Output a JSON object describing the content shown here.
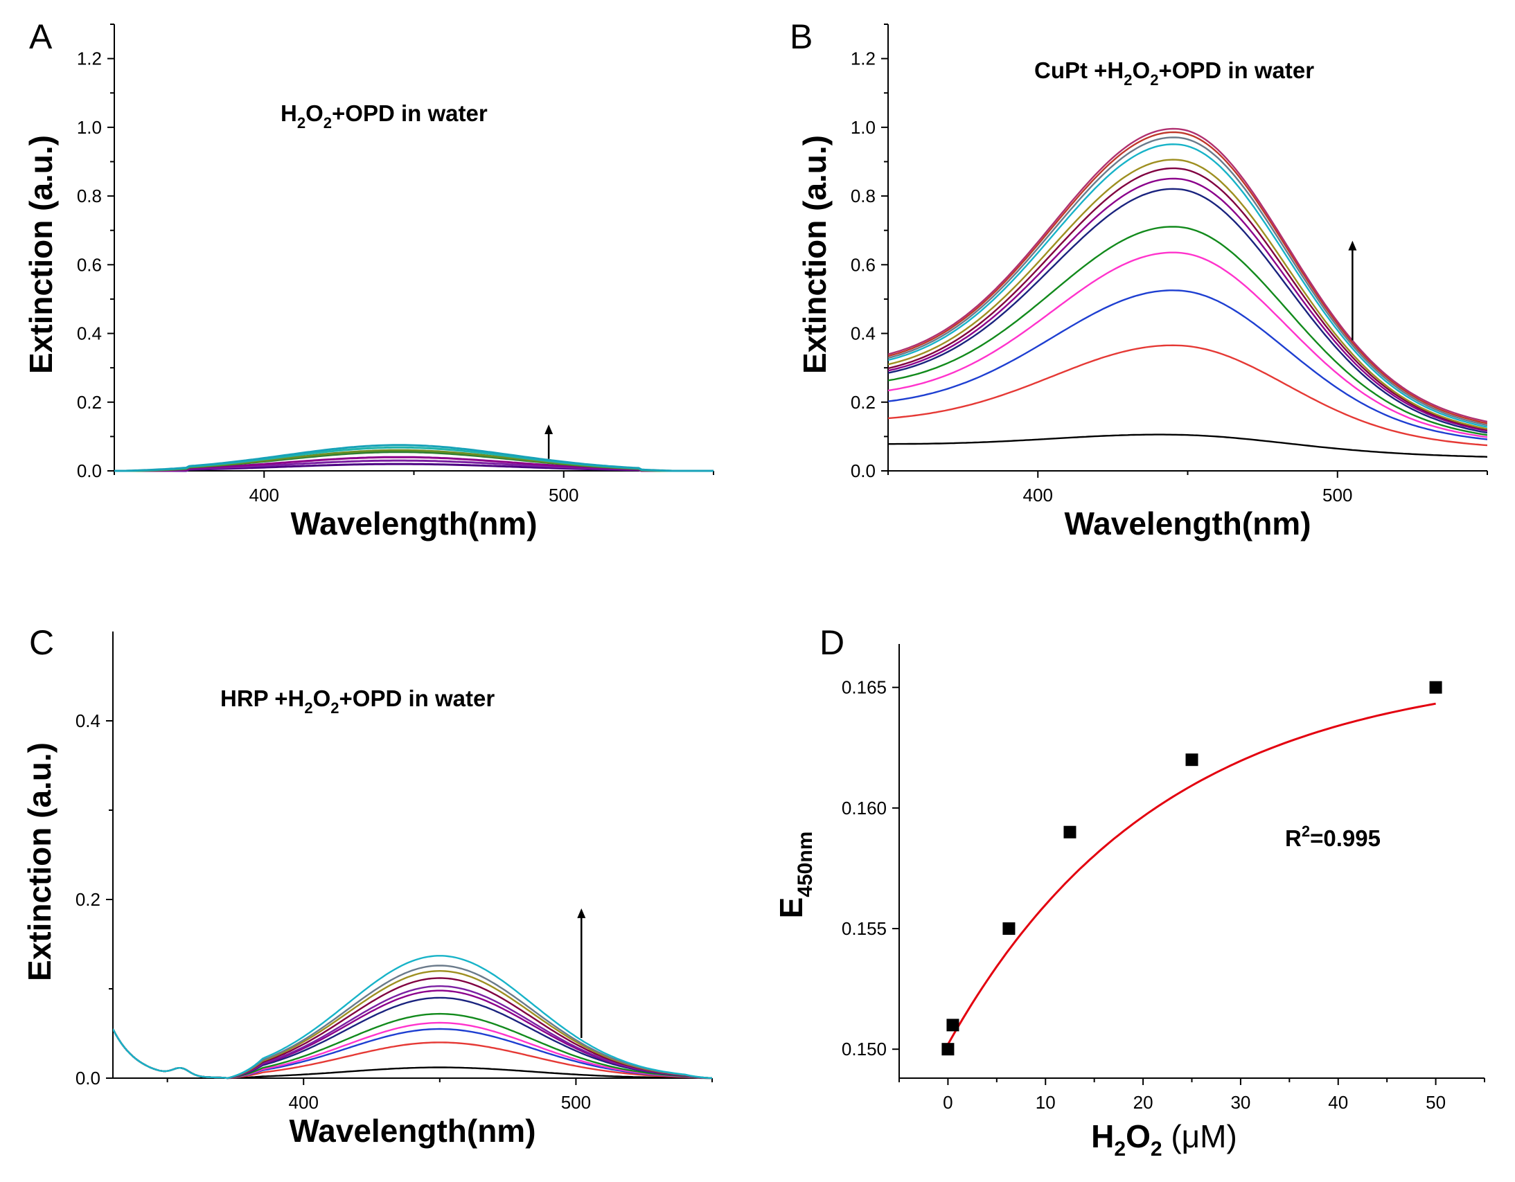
{
  "figure": {
    "panels": [
      {
        "letter": "A"
      },
      {
        "letter": "B"
      },
      {
        "letter": "C"
      },
      {
        "letter": "D"
      }
    ]
  },
  "chart_data": [
    {
      "type": "line",
      "panel": "A",
      "title": "",
      "annotation": {
        "prefix": "H",
        "sub1": "2",
        "mid": "O",
        "sub2": "2",
        "suffix": "+OPD in water"
      },
      "xlabel": "Wavelength(nm)",
      "ylabel": "Extinction (a.u.)",
      "xlim": [
        350,
        550
      ],
      "ylim": [
        0,
        1.3
      ],
      "xticks": [
        400,
        500
      ],
      "yticks": [
        0.0,
        0.2,
        0.4,
        0.6,
        0.8,
        1.0,
        1.2
      ],
      "ytick_labels": [
        "0.0",
        "0.2",
        "0.4",
        "0.6",
        "0.8",
        "1.0",
        "1.2"
      ],
      "xtick_labels": [
        "400",
        "500"
      ],
      "peak_wavelength": 445,
      "arrow": {
        "x": 495,
        "y_from": 0.035,
        "y_to": 0.135
      },
      "series": [
        {
          "name": "s1",
          "color": "#4b0082",
          "peak": 0.02,
          "base": 0.0
        },
        {
          "name": "s2",
          "color": "#7b1fa2",
          "peak": 0.03,
          "base": 0.0
        },
        {
          "name": "s3",
          "color": "#8b008b",
          "peak": 0.04,
          "base": 0.0
        },
        {
          "name": "s4",
          "color": "#2e7d32",
          "peak": 0.055,
          "base": 0.0
        },
        {
          "name": "s5",
          "color": "#6b8e23",
          "peak": 0.06,
          "base": 0.0
        },
        {
          "name": "s6",
          "color": "#20b2aa",
          "peak": 0.068,
          "base": 0.0
        },
        {
          "name": "s7",
          "color": "#17a2b8",
          "peak": 0.075,
          "base": 0.0
        }
      ]
    },
    {
      "type": "line",
      "panel": "B",
      "annotation": {
        "prefix": "CuPt +H",
        "sub1": "2",
        "mid": "O",
        "sub2": "2",
        "suffix": "+OPD in water"
      },
      "xlabel": "Wavelength(nm)",
      "ylabel": "Extinction (a.u.)",
      "xlim": [
        350,
        550
      ],
      "ylim": [
        0,
        1.3
      ],
      "xticks": [
        400,
        500
      ],
      "yticks": [
        0.0,
        0.2,
        0.4,
        0.6,
        0.8,
        1.0,
        1.2
      ],
      "ytick_labels": [
        "0.0",
        "0.2",
        "0.4",
        "0.6",
        "0.8",
        "1.0",
        "1.2"
      ],
      "xtick_labels": [
        "400",
        "500"
      ],
      "peak_wavelength": 447,
      "arrow": {
        "x": 505,
        "y_from": 0.38,
        "y_to": 0.67
      },
      "series": [
        {
          "name": "s1",
          "color": "#000000",
          "peak": 0.105,
          "base": 0.075,
          "tail": 0.04
        },
        {
          "name": "s2",
          "color": "#e53935",
          "peak": 0.365,
          "base": 0.135,
          "tail": 0.07
        },
        {
          "name": "s3",
          "color": "#1e3fd1",
          "peak": 0.525,
          "base": 0.175,
          "tail": 0.085
        },
        {
          "name": "s4",
          "color": "#ff33cc",
          "peak": 0.635,
          "base": 0.2,
          "tail": 0.09
        },
        {
          "name": "s5",
          "color": "#128a1c",
          "peak": 0.71,
          "base": 0.225,
          "tail": 0.095
        },
        {
          "name": "s6",
          "color": "#1a237e",
          "peak": 0.82,
          "base": 0.24,
          "tail": 0.1
        },
        {
          "name": "s7",
          "color": "#8b008b",
          "peak": 0.85,
          "base": 0.245,
          "tail": 0.105
        },
        {
          "name": "s8",
          "color": "#800040",
          "peak": 0.88,
          "base": 0.25,
          "tail": 0.108
        },
        {
          "name": "s9",
          "color": "#9e8f20",
          "peak": 0.905,
          "base": 0.26,
          "tail": 0.11
        },
        {
          "name": "s10",
          "color": "#17b3c8",
          "peak": 0.95,
          "base": 0.27,
          "tail": 0.115
        },
        {
          "name": "s11",
          "color": "#6a7a8a",
          "peak": 0.97,
          "base": 0.275,
          "tail": 0.12
        },
        {
          "name": "s12",
          "color": "#c0392b",
          "peak": 0.985,
          "base": 0.28,
          "tail": 0.125
        },
        {
          "name": "s13",
          "color": "#b03070",
          "peak": 0.995,
          "base": 0.285,
          "tail": 0.13
        }
      ]
    },
    {
      "type": "line",
      "panel": "C",
      "annotation": {
        "prefix": "HRP +H",
        "sub1": "2",
        "mid": "O",
        "sub2": "2",
        "suffix": "+OPD in water"
      },
      "xlabel": "Wavelength(nm)",
      "ylabel": "Extinction (a.u.)",
      "xlim": [
        330,
        550
      ],
      "ylim": [
        0,
        0.5
      ],
      "xticks": [
        400,
        500
      ],
      "yticks": [
        0.0,
        0.2,
        0.4
      ],
      "ytick_labels": [
        "0.0",
        "0.2",
        "0.4"
      ],
      "xtick_labels": [
        "400",
        "500"
      ],
      "peak_wavelength": 450,
      "arrow": {
        "x": 502,
        "y_from": 0.045,
        "y_to": 0.19
      },
      "series": [
        {
          "name": "s1",
          "color": "#000000",
          "peak": 0.012
        },
        {
          "name": "s2",
          "color": "#e53935",
          "peak": 0.04
        },
        {
          "name": "s3",
          "color": "#1e3fd1",
          "peak": 0.055
        },
        {
          "name": "s4",
          "color": "#ff33cc",
          "peak": 0.062
        },
        {
          "name": "s5",
          "color": "#128a1c",
          "peak": 0.072
        },
        {
          "name": "s6",
          "color": "#1a237e",
          "peak": 0.09
        },
        {
          "name": "s7",
          "color": "#8b008b",
          "peak": 0.098
        },
        {
          "name": "s8",
          "color": "#7b1fa2",
          "peak": 0.103
        },
        {
          "name": "s9",
          "color": "#800040",
          "peak": 0.112
        },
        {
          "name": "s10",
          "color": "#9e8f20",
          "peak": 0.12
        },
        {
          "name": "s11",
          "color": "#6a7a8a",
          "peak": 0.126
        },
        {
          "name": "s12",
          "color": "#17b3c8",
          "peak": 0.137
        }
      ]
    },
    {
      "type": "scatter",
      "panel": "D",
      "ylabel_main": "E",
      "ylabel_sub": "450nm",
      "xlabel_main": "H",
      "xlabel_sub": "2",
      "xlabel_mid": "O",
      "xlabel_sub2": "2",
      "xlabel_unit": "(μM)",
      "annotation": {
        "prefix": "R",
        "sup": "2",
        "suffix": "=0.995"
      },
      "xlim": [
        -5,
        55
      ],
      "ylim": [
        0.1488,
        0.1668
      ],
      "xticks": [
        0,
        10,
        20,
        30,
        40,
        50
      ],
      "xtick_labels": [
        "0",
        "10",
        "20",
        "30",
        "40",
        "50"
      ],
      "yticks": [
        0.15,
        0.155,
        0.16,
        0.165
      ],
      "ytick_labels": [
        "0.150",
        "0.155",
        "0.160",
        "0.165"
      ],
      "x": [
        0,
        0.5,
        6.25,
        12.5,
        25,
        50
      ],
      "y": [
        0.15,
        0.151,
        0.155,
        0.159,
        0.162,
        0.165
      ],
      "fit": {
        "color": "#e3000f",
        "model": "exponential-rise",
        "y0": 0.1502,
        "a": 0.0157,
        "k": 0.046
      }
    }
  ]
}
